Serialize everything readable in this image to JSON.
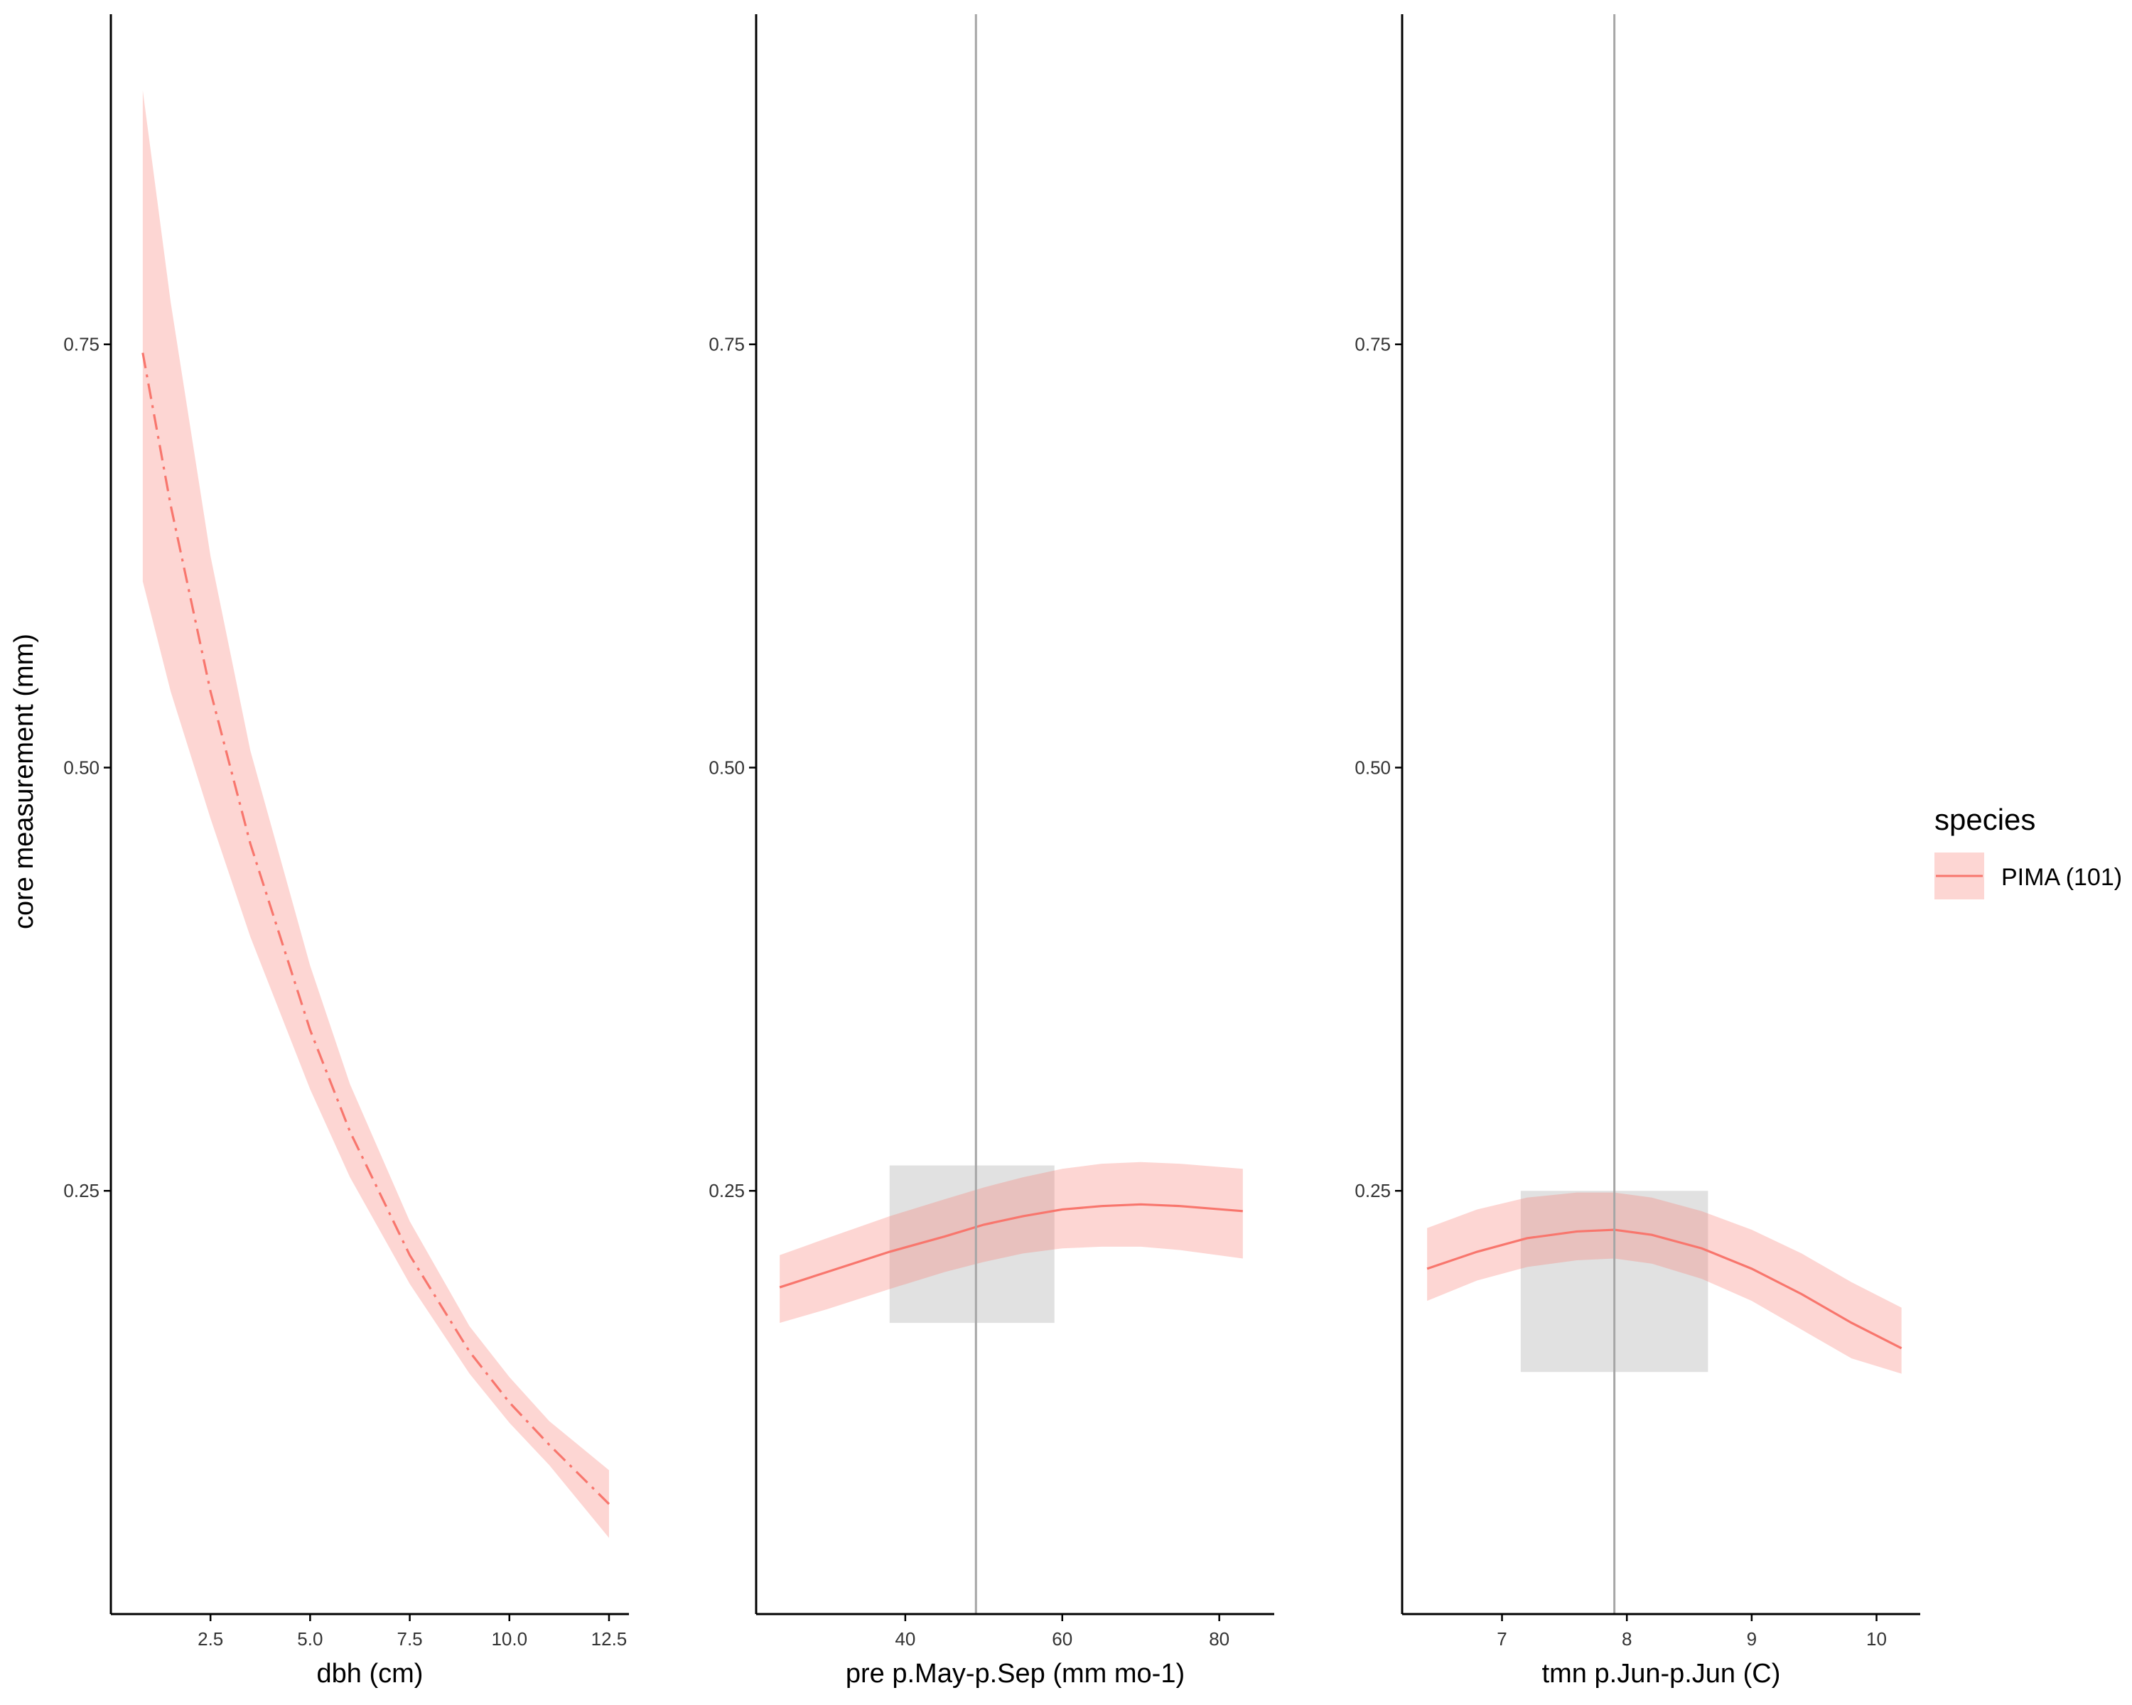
{
  "chart_data": {
    "type": "line",
    "ylabel": "core measurement (mm)",
    "ylim": [
      0.0,
      0.945
    ],
    "yticks": [
      0.25,
      0.5,
      0.75
    ],
    "ytick_labels": [
      "0.25",
      "0.50",
      "0.75"
    ],
    "colors": {
      "line": "#F8766D",
      "ribbon": "#F8766D",
      "box": "#BDBDBD",
      "vline": "#A6A6A6",
      "axis": "#000000"
    },
    "legend": {
      "title": "species",
      "placement": "right",
      "entries": [
        {
          "label": "PIMA (101)",
          "color": "#F8766D"
        }
      ]
    },
    "panels": [
      {
        "xlabel": "dbh  (cm)",
        "xlim": [
          0.0,
          13.0
        ],
        "xticks": [
          2.5,
          5.0,
          7.5,
          10.0,
          12.5
        ],
        "xtick_labels": [
          "2.5",
          "5.0",
          "7.5",
          "10.0",
          "12.5"
        ],
        "line_style": "dashdot",
        "series": [
          {
            "name": "PIMA (101)",
            "x": [
              0.8,
              1.5,
              2.5,
              3.5,
              5.0,
              6.0,
              7.5,
              9.0,
              10.0,
              11.0,
              12.5
            ],
            "y": [
              0.745,
              0.655,
              0.545,
              0.455,
              0.345,
              0.285,
              0.212,
              0.155,
              0.125,
              0.1,
              0.065
            ],
            "lower": [
              0.61,
              0.545,
              0.47,
              0.4,
              0.31,
              0.258,
              0.195,
              0.142,
              0.113,
              0.088,
              0.045
            ],
            "upper": [
              0.9,
              0.775,
              0.625,
              0.51,
              0.383,
              0.313,
              0.232,
              0.17,
              0.14,
              0.114,
              0.085
            ]
          }
        ]
      },
      {
        "xlabel": "pre p.May-p.Sep (mm mo-1)",
        "xlim": [
          21.0,
          87.0
        ],
        "xticks": [
          40,
          60,
          80
        ],
        "xtick_labels": [
          "40",
          "60",
          "80"
        ],
        "line_style": "solid",
        "vline": 49,
        "box": {
          "x": [
            38,
            59
          ],
          "y": [
            0.172,
            0.265
          ]
        },
        "series": [
          {
            "name": "PIMA (101)",
            "x": [
              24,
              30,
              38,
              45,
              50,
              55,
              60,
              65,
              70,
              75,
              83
            ],
            "y": [
              0.193,
              0.202,
              0.214,
              0.223,
              0.23,
              0.235,
              0.239,
              0.241,
              0.242,
              0.241,
              0.238
            ],
            "lower": [
              0.172,
              0.18,
              0.192,
              0.202,
              0.208,
              0.213,
              0.216,
              0.217,
              0.217,
              0.215,
              0.21
            ],
            "upper": [
              0.212,
              0.222,
              0.235,
              0.245,
              0.252,
              0.258,
              0.263,
              0.266,
              0.267,
              0.266,
              0.263
            ]
          }
        ]
      },
      {
        "xlabel": "tmn p.Jun-p.Jun (C)",
        "xlim": [
          6.2,
          10.35
        ],
        "xticks": [
          7,
          8,
          9,
          10
        ],
        "xtick_labels": [
          "7",
          "8",
          "9",
          "10"
        ],
        "line_style": "solid",
        "vline": 7.9,
        "box": {
          "x": [
            7.15,
            8.65
          ],
          "y": [
            0.143,
            0.25
          ]
        },
        "series": [
          {
            "name": "PIMA (101)",
            "x": [
              6.4,
              6.8,
              7.2,
              7.6,
              7.9,
              8.2,
              8.6,
              9.0,
              9.4,
              9.8,
              10.2
            ],
            "y": [
              0.204,
              0.214,
              0.222,
              0.226,
              0.227,
              0.224,
              0.216,
              0.204,
              0.189,
              0.172,
              0.157
            ],
            "lower": [
              0.185,
              0.197,
              0.205,
              0.209,
              0.21,
              0.207,
              0.198,
              0.185,
              0.168,
              0.151,
              0.142
            ],
            "upper": [
              0.228,
              0.239,
              0.246,
              0.249,
              0.249,
              0.246,
              0.238,
              0.227,
              0.213,
              0.196,
              0.181
            ]
          }
        ]
      }
    ]
  }
}
